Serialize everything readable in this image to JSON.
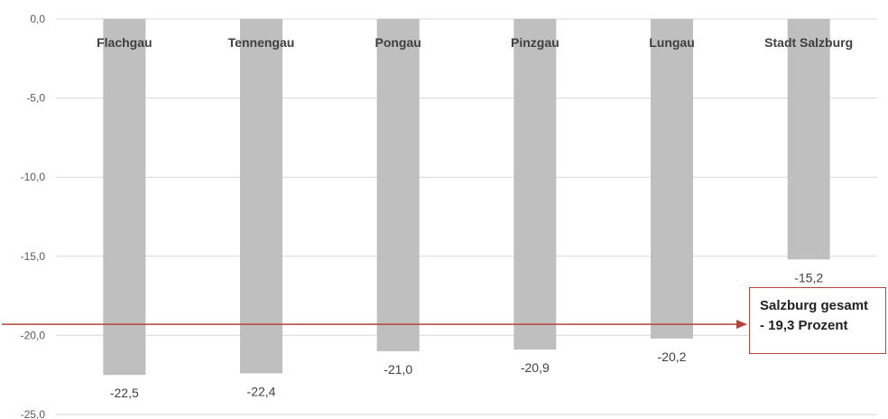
{
  "chart_data": {
    "type": "bar",
    "categories": [
      "Flachgau",
      "Tennengau",
      "Pongau",
      "Pinzgau",
      "Lungau",
      "Stadt Salzburg"
    ],
    "values": [
      -22.5,
      -22.4,
      -21.0,
      -20.9,
      -20.2,
      -15.2
    ],
    "value_labels": [
      "-22,5",
      "-22,4",
      "-21,0",
      "-20,9",
      "-20,2",
      "-15,2"
    ],
    "ylim": [
      -25,
      0
    ],
    "yticks": [
      0,
      -5,
      -10,
      -15,
      -20,
      -25
    ],
    "ytick_labels": [
      "0,0",
      "-5,0",
      "-10,0",
      "-15,0",
      "-20,0",
      "-25,0"
    ],
    "grid": true,
    "reference_line": {
      "value": -19.3,
      "color": "#b5443a"
    },
    "colors": {
      "bar": "#bfbfbf",
      "grid": "#d9d9d9",
      "axis_text": "#595959",
      "label_text": "#404040"
    }
  },
  "callout": {
    "line1": "Salzburg gesamt",
    "line2": "- 19,3 Prozent"
  }
}
